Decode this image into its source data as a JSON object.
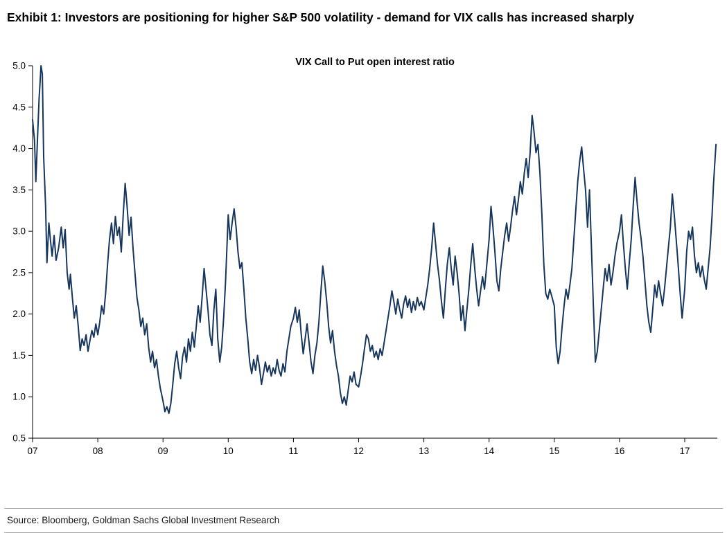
{
  "header": {
    "title": "Exhibit 1: Investors are positioning for higher S&P 500 volatility - demand for VIX calls has increased sharply"
  },
  "footer": {
    "source": "Source: Bloomberg, Goldman Sachs Global Investment Research"
  },
  "chart_data": {
    "type": "line",
    "title": "VIX Call to Put open interest ratio",
    "xlabel": "",
    "ylabel": "",
    "xlim": [
      7.0,
      17.5
    ],
    "ylim": [
      0.5,
      5.0
    ],
    "grid": false,
    "legend": "none",
    "line_color": "#16365d",
    "axis_color": "#000000",
    "yticks": [
      0.5,
      1.0,
      1.5,
      2.0,
      2.5,
      3.0,
      3.5,
      4.0,
      4.5,
      5.0
    ],
    "xticks": [
      [
        7,
        "07"
      ],
      [
        8,
        "08"
      ],
      [
        9,
        "09"
      ],
      [
        10,
        "10"
      ],
      [
        11,
        "11"
      ],
      [
        12,
        "12"
      ],
      [
        13,
        "13"
      ],
      [
        14,
        "14"
      ],
      [
        15,
        "15"
      ],
      [
        16,
        "16"
      ],
      [
        17,
        "17"
      ]
    ],
    "series_name": "VIX call/put open interest ratio",
    "points": [
      [
        7.0,
        4.35
      ],
      [
        7.03,
        4.1
      ],
      [
        7.05,
        3.6
      ],
      [
        7.08,
        4.2
      ],
      [
        7.1,
        4.6
      ],
      [
        7.13,
        5.0
      ],
      [
        7.15,
        4.9
      ],
      [
        7.17,
        3.9
      ],
      [
        7.2,
        3.3
      ],
      [
        7.22,
        2.62
      ],
      [
        7.25,
        3.1
      ],
      [
        7.28,
        2.85
      ],
      [
        7.3,
        2.7
      ],
      [
        7.33,
        2.95
      ],
      [
        7.36,
        2.65
      ],
      [
        7.4,
        2.8
      ],
      [
        7.44,
        3.05
      ],
      [
        7.47,
        2.8
      ],
      [
        7.5,
        3.02
      ],
      [
        7.53,
        2.5
      ],
      [
        7.56,
        2.3
      ],
      [
        7.58,
        2.48
      ],
      [
        7.61,
        2.2
      ],
      [
        7.64,
        1.95
      ],
      [
        7.67,
        2.1
      ],
      [
        7.7,
        1.85
      ],
      [
        7.73,
        1.56
      ],
      [
        7.76,
        1.7
      ],
      [
        7.79,
        1.62
      ],
      [
        7.82,
        1.75
      ],
      [
        7.85,
        1.55
      ],
      [
        7.88,
        1.68
      ],
      [
        7.91,
        1.8
      ],
      [
        7.94,
        1.72
      ],
      [
        7.97,
        1.88
      ],
      [
        8.0,
        1.75
      ],
      [
        8.03,
        1.9
      ],
      [
        8.06,
        2.1
      ],
      [
        8.09,
        2.0
      ],
      [
        8.12,
        2.25
      ],
      [
        8.15,
        2.6
      ],
      [
        8.18,
        2.9
      ],
      [
        8.21,
        3.1
      ],
      [
        8.24,
        2.85
      ],
      [
        8.27,
        3.18
      ],
      [
        8.3,
        2.95
      ],
      [
        8.33,
        3.05
      ],
      [
        8.36,
        2.75
      ],
      [
        8.39,
        3.2
      ],
      [
        8.42,
        3.58
      ],
      [
        8.45,
        3.3
      ],
      [
        8.48,
        2.95
      ],
      [
        8.51,
        3.17
      ],
      [
        8.54,
        2.8
      ],
      [
        8.57,
        2.5
      ],
      [
        8.6,
        2.2
      ],
      [
        8.63,
        2.05
      ],
      [
        8.66,
        1.85
      ],
      [
        8.69,
        1.95
      ],
      [
        8.72,
        1.75
      ],
      [
        8.75,
        1.88
      ],
      [
        8.78,
        1.6
      ],
      [
        8.81,
        1.42
      ],
      [
        8.84,
        1.55
      ],
      [
        8.87,
        1.35
      ],
      [
        8.9,
        1.45
      ],
      [
        8.93,
        1.25
      ],
      [
        8.96,
        1.1
      ],
      [
        9.0,
        0.95
      ],
      [
        9.03,
        0.82
      ],
      [
        9.06,
        0.88
      ],
      [
        9.09,
        0.8
      ],
      [
        9.12,
        0.92
      ],
      [
        9.15,
        1.15
      ],
      [
        9.18,
        1.4
      ],
      [
        9.21,
        1.55
      ],
      [
        9.24,
        1.35
      ],
      [
        9.27,
        1.22
      ],
      [
        9.3,
        1.48
      ],
      [
        9.33,
        1.6
      ],
      [
        9.36,
        1.42
      ],
      [
        9.39,
        1.7
      ],
      [
        9.42,
        1.55
      ],
      [
        9.45,
        1.78
      ],
      [
        9.48,
        1.6
      ],
      [
        9.51,
        1.85
      ],
      [
        9.54,
        2.1
      ],
      [
        9.57,
        1.9
      ],
      [
        9.6,
        2.2
      ],
      [
        9.63,
        2.55
      ],
      [
        9.66,
        2.3
      ],
      [
        9.69,
        2.05
      ],
      [
        9.72,
        1.75
      ],
      [
        9.75,
        1.62
      ],
      [
        9.78,
        2.05
      ],
      [
        9.81,
        2.3
      ],
      [
        9.84,
        1.7
      ],
      [
        9.87,
        1.42
      ],
      [
        9.9,
        1.6
      ],
      [
        9.93,
        1.95
      ],
      [
        9.96,
        2.4
      ],
      [
        10.0,
        3.2
      ],
      [
        10.03,
        2.9
      ],
      [
        10.06,
        3.1
      ],
      [
        10.09,
        3.27
      ],
      [
        10.12,
        3.05
      ],
      [
        10.15,
        2.75
      ],
      [
        10.18,
        2.55
      ],
      [
        10.21,
        2.62
      ],
      [
        10.24,
        2.3
      ],
      [
        10.27,
        1.95
      ],
      [
        10.3,
        1.7
      ],
      [
        10.33,
        1.42
      ],
      [
        10.36,
        1.28
      ],
      [
        10.39,
        1.45
      ],
      [
        10.42,
        1.32
      ],
      [
        10.45,
        1.5
      ],
      [
        10.48,
        1.35
      ],
      [
        10.51,
        1.15
      ],
      [
        10.54,
        1.28
      ],
      [
        10.57,
        1.42
      ],
      [
        10.6,
        1.3
      ],
      [
        10.63,
        1.38
      ],
      [
        10.66,
        1.25
      ],
      [
        10.69,
        1.35
      ],
      [
        10.72,
        1.28
      ],
      [
        10.75,
        1.45
      ],
      [
        10.78,
        1.32
      ],
      [
        10.81,
        1.25
      ],
      [
        10.84,
        1.4
      ],
      [
        10.87,
        1.3
      ],
      [
        10.9,
        1.55
      ],
      [
        10.93,
        1.7
      ],
      [
        10.96,
        1.85
      ],
      [
        11.0,
        1.95
      ],
      [
        11.03,
        2.08
      ],
      [
        11.06,
        1.9
      ],
      [
        11.09,
        2.05
      ],
      [
        11.12,
        1.75
      ],
      [
        11.15,
        1.52
      ],
      [
        11.18,
        1.7
      ],
      [
        11.21,
        1.88
      ],
      [
        11.24,
        1.65
      ],
      [
        11.27,
        1.42
      ],
      [
        11.3,
        1.28
      ],
      [
        11.33,
        1.5
      ],
      [
        11.36,
        1.65
      ],
      [
        11.39,
        1.9
      ],
      [
        11.42,
        2.25
      ],
      [
        11.45,
        2.58
      ],
      [
        11.48,
        2.4
      ],
      [
        11.51,
        2.15
      ],
      [
        11.54,
        1.85
      ],
      [
        11.57,
        1.65
      ],
      [
        11.6,
        1.8
      ],
      [
        11.63,
        1.55
      ],
      [
        11.66,
        1.38
      ],
      [
        11.69,
        1.25
      ],
      [
        11.72,
        1.05
      ],
      [
        11.75,
        0.92
      ],
      [
        11.78,
        1.0
      ],
      [
        11.81,
        0.9
      ],
      [
        11.84,
        1.08
      ],
      [
        11.87,
        1.25
      ],
      [
        11.9,
        1.18
      ],
      [
        11.93,
        1.3
      ],
      [
        11.96,
        1.15
      ],
      [
        12.0,
        1.12
      ],
      [
        12.03,
        1.25
      ],
      [
        12.06,
        1.4
      ],
      [
        12.09,
        1.58
      ],
      [
        12.12,
        1.75
      ],
      [
        12.15,
        1.7
      ],
      [
        12.18,
        1.55
      ],
      [
        12.21,
        1.62
      ],
      [
        12.24,
        1.48
      ],
      [
        12.27,
        1.55
      ],
      [
        12.3,
        1.45
      ],
      [
        12.33,
        1.58
      ],
      [
        12.36,
        1.5
      ],
      [
        12.39,
        1.65
      ],
      [
        12.42,
        1.8
      ],
      [
        12.45,
        1.95
      ],
      [
        12.48,
        2.1
      ],
      [
        12.51,
        2.28
      ],
      [
        12.54,
        2.15
      ],
      [
        12.57,
        2.0
      ],
      [
        12.6,
        2.18
      ],
      [
        12.63,
        2.05
      ],
      [
        12.66,
        1.95
      ],
      [
        12.69,
        2.12
      ],
      [
        12.72,
        2.22
      ],
      [
        12.75,
        2.08
      ],
      [
        12.78,
        2.18
      ],
      [
        12.81,
        2.02
      ],
      [
        12.84,
        2.15
      ],
      [
        12.87,
        2.05
      ],
      [
        12.9,
        2.2
      ],
      [
        12.93,
        2.1
      ],
      [
        12.96,
        2.15
      ],
      [
        13.0,
        2.05
      ],
      [
        13.03,
        2.2
      ],
      [
        13.06,
        2.35
      ],
      [
        13.09,
        2.55
      ],
      [
        13.12,
        2.8
      ],
      [
        13.15,
        3.1
      ],
      [
        13.18,
        2.85
      ],
      [
        13.21,
        2.6
      ],
      [
        13.24,
        2.4
      ],
      [
        13.27,
        2.15
      ],
      [
        13.3,
        1.95
      ],
      [
        13.33,
        2.3
      ],
      [
        13.36,
        2.6
      ],
      [
        13.39,
        2.8
      ],
      [
        13.42,
        2.55
      ],
      [
        13.45,
        2.35
      ],
      [
        13.48,
        2.7
      ],
      [
        13.51,
        2.5
      ],
      [
        13.54,
        2.25
      ],
      [
        13.57,
        1.92
      ],
      [
        13.6,
        2.1
      ],
      [
        13.63,
        1.8
      ],
      [
        13.66,
        2.05
      ],
      [
        13.69,
        2.3
      ],
      [
        13.72,
        2.6
      ],
      [
        13.75,
        2.85
      ],
      [
        13.78,
        2.55
      ],
      [
        13.81,
        2.3
      ],
      [
        13.84,
        2.1
      ],
      [
        13.87,
        2.28
      ],
      [
        13.9,
        2.45
      ],
      [
        13.93,
        2.3
      ],
      [
        13.96,
        2.55
      ],
      [
        14.0,
        2.9
      ],
      [
        14.03,
        3.3
      ],
      [
        14.06,
        3.05
      ],
      [
        14.09,
        2.75
      ],
      [
        14.12,
        2.4
      ],
      [
        14.15,
        2.28
      ],
      [
        14.18,
        2.55
      ],
      [
        14.21,
        2.75
      ],
      [
        14.24,
        2.95
      ],
      [
        14.27,
        3.1
      ],
      [
        14.3,
        2.88
      ],
      [
        14.33,
        3.05
      ],
      [
        14.36,
        3.25
      ],
      [
        14.39,
        3.42
      ],
      [
        14.42,
        3.2
      ],
      [
        14.45,
        3.38
      ],
      [
        14.48,
        3.6
      ],
      [
        14.51,
        3.45
      ],
      [
        14.54,
        3.7
      ],
      [
        14.57,
        3.88
      ],
      [
        14.6,
        3.65
      ],
      [
        14.63,
        3.95
      ],
      [
        14.66,
        4.4
      ],
      [
        14.69,
        4.2
      ],
      [
        14.72,
        3.95
      ],
      [
        14.75,
        4.05
      ],
      [
        14.78,
        3.7
      ],
      [
        14.81,
        3.2
      ],
      [
        14.84,
        2.6
      ],
      [
        14.87,
        2.25
      ],
      [
        14.9,
        2.18
      ],
      [
        14.93,
        2.3
      ],
      [
        14.96,
        2.22
      ],
      [
        15.0,
        2.1
      ],
      [
        15.03,
        1.6
      ],
      [
        15.06,
        1.4
      ],
      [
        15.09,
        1.55
      ],
      [
        15.12,
        1.85
      ],
      [
        15.15,
        2.1
      ],
      [
        15.18,
        2.3
      ],
      [
        15.21,
        2.18
      ],
      [
        15.24,
        2.35
      ],
      [
        15.27,
        2.55
      ],
      [
        15.3,
        2.9
      ],
      [
        15.33,
        3.25
      ],
      [
        15.36,
        3.6
      ],
      [
        15.39,
        3.85
      ],
      [
        15.42,
        4.02
      ],
      [
        15.45,
        3.75
      ],
      [
        15.48,
        3.5
      ],
      [
        15.51,
        3.05
      ],
      [
        15.54,
        3.5
      ],
      [
        15.57,
        2.8
      ],
      [
        15.6,
        2.1
      ],
      [
        15.63,
        1.42
      ],
      [
        15.66,
        1.55
      ],
      [
        15.69,
        1.8
      ],
      [
        15.72,
        2.05
      ],
      [
        15.75,
        2.3
      ],
      [
        15.78,
        2.55
      ],
      [
        15.81,
        2.4
      ],
      [
        15.84,
        2.6
      ],
      [
        15.87,
        2.35
      ],
      [
        15.9,
        2.5
      ],
      [
        15.93,
        2.7
      ],
      [
        15.96,
        2.85
      ],
      [
        16.0,
        3.0
      ],
      [
        16.03,
        3.2
      ],
      [
        16.06,
        2.85
      ],
      [
        16.09,
        2.55
      ],
      [
        16.12,
        2.3
      ],
      [
        16.15,
        2.62
      ],
      [
        16.18,
        2.9
      ],
      [
        16.21,
        3.3
      ],
      [
        16.24,
        3.65
      ],
      [
        16.27,
        3.35
      ],
      [
        16.3,
        3.1
      ],
      [
        16.33,
        2.92
      ],
      [
        16.36,
        2.7
      ],
      [
        16.39,
        2.4
      ],
      [
        16.42,
        2.1
      ],
      [
        16.45,
        1.9
      ],
      [
        16.48,
        1.78
      ],
      [
        16.51,
        2.05
      ],
      [
        16.54,
        2.35
      ],
      [
        16.57,
        2.2
      ],
      [
        16.6,
        2.4
      ],
      [
        16.63,
        2.25
      ],
      [
        16.66,
        2.1
      ],
      [
        16.69,
        2.3
      ],
      [
        16.72,
        2.55
      ],
      [
        16.75,
        2.8
      ],
      [
        16.78,
        3.05
      ],
      [
        16.81,
        3.45
      ],
      [
        16.84,
        3.2
      ],
      [
        16.87,
        2.9
      ],
      [
        16.9,
        2.6
      ],
      [
        16.93,
        2.25
      ],
      [
        16.96,
        1.95
      ],
      [
        17.0,
        2.3
      ],
      [
        17.03,
        2.75
      ],
      [
        17.06,
        3.0
      ],
      [
        17.09,
        2.9
      ],
      [
        17.12,
        3.05
      ],
      [
        17.15,
        2.7
      ],
      [
        17.18,
        2.5
      ],
      [
        17.21,
        2.62
      ],
      [
        17.24,
        2.45
      ],
      [
        17.27,
        2.58
      ],
      [
        17.3,
        2.42
      ],
      [
        17.33,
        2.3
      ],
      [
        17.36,
        2.55
      ],
      [
        17.39,
        2.8
      ],
      [
        17.42,
        3.2
      ],
      [
        17.44,
        3.55
      ],
      [
        17.46,
        3.8
      ],
      [
        17.48,
        4.05
      ]
    ]
  }
}
